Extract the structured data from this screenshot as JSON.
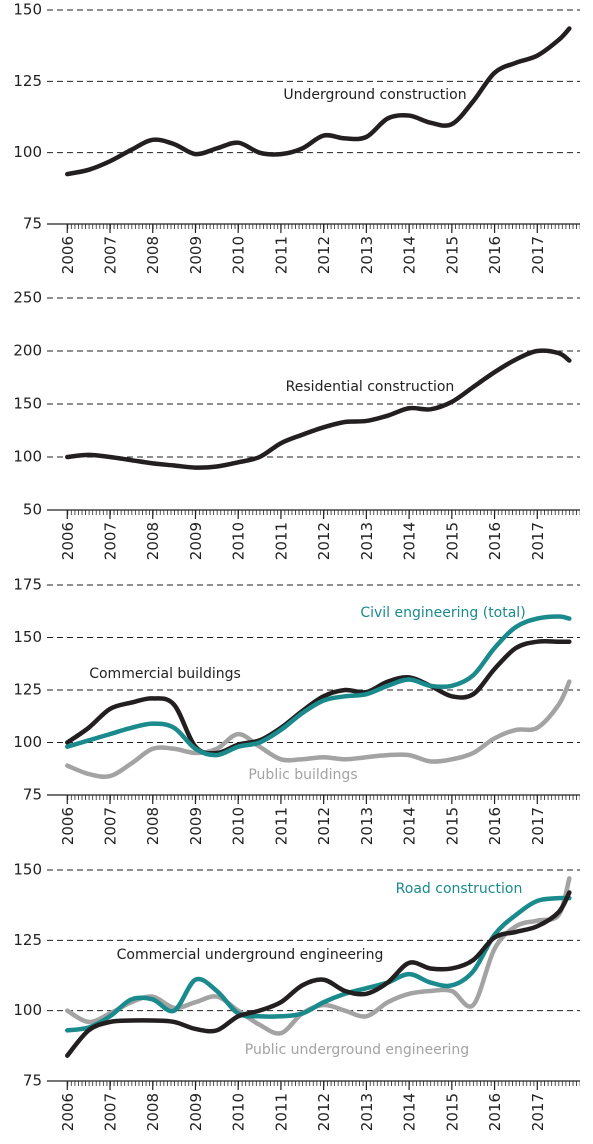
{
  "chart_data": [
    {
      "type": "line",
      "xlim": [
        2005.9,
        2018.0
      ],
      "xticks": [
        2006,
        2007,
        2008,
        2009,
        2010,
        2011,
        2012,
        2013,
        2014,
        2015,
        2016,
        2017
      ],
      "ylim": [
        75,
        150
      ],
      "yticks": [
        75,
        100,
        125,
        150
      ],
      "grid": true,
      "x": [
        2006,
        2006.5,
        2007,
        2007.5,
        2008,
        2008.5,
        2009,
        2009.5,
        2010,
        2010.5,
        2011,
        2011.5,
        2012,
        2012.5,
        2013,
        2013.5,
        2014,
        2014.5,
        2015,
        2015.5,
        2016,
        2016.5,
        2017,
        2017.5,
        2017.75
      ],
      "series": [
        {
          "name": "Underground construction",
          "color": "#231f20",
          "values": [
            92.5,
            94,
            97,
            101,
            104.5,
            103,
            99.5,
            101.5,
            103.5,
            100,
            99.5,
            101.5,
            106,
            105,
            105.5,
            112,
            113,
            110.5,
            110,
            118,
            128,
            131.5,
            134,
            139.5,
            143.5
          ]
        }
      ]
    },
    {
      "type": "line",
      "xlim": [
        2005.9,
        2018.0
      ],
      "xticks": [
        2006,
        2007,
        2008,
        2009,
        2010,
        2011,
        2012,
        2013,
        2014,
        2015,
        2016,
        2017
      ],
      "ylim": [
        50,
        250
      ],
      "yticks": [
        50,
        100,
        150,
        200,
        250
      ],
      "grid": true,
      "x": [
        2006,
        2006.5,
        2007,
        2007.5,
        2008,
        2008.5,
        2009,
        2009.5,
        2010,
        2010.5,
        2011,
        2011.5,
        2012,
        2012.5,
        2013,
        2013.5,
        2014,
        2014.5,
        2015,
        2015.5,
        2016,
        2016.5,
        2017,
        2017.5,
        2017.75
      ],
      "series": [
        {
          "name": "Residential construction",
          "color": "#231f20",
          "values": [
            100,
            102,
            100,
            97,
            94,
            92,
            90,
            91,
            95,
            100,
            113,
            121,
            128,
            133,
            134,
            139,
            146,
            145,
            152,
            166,
            180,
            192,
            200,
            198,
            191
          ]
        }
      ]
    },
    {
      "type": "line",
      "xlim": [
        2005.9,
        2018.0
      ],
      "xticks": [
        2006,
        2007,
        2008,
        2009,
        2010,
        2011,
        2012,
        2013,
        2014,
        2015,
        2016,
        2017
      ],
      "ylim": [
        75,
        175
      ],
      "yticks": [
        75,
        100,
        125,
        150,
        175
      ],
      "grid": true,
      "x": [
        2006,
        2006.5,
        2007,
        2007.5,
        2008,
        2008.5,
        2009,
        2009.5,
        2010,
        2010.5,
        2011,
        2011.5,
        2012,
        2012.5,
        2013,
        2013.5,
        2014,
        2014.5,
        2015,
        2015.5,
        2016,
        2016.5,
        2017,
        2017.5,
        2017.75
      ],
      "series": [
        {
          "name": "Public buildings",
          "color": "#a3a3a3",
          "values": [
            89,
            85,
            84,
            90,
            97,
            97,
            95,
            97,
            104,
            98,
            92,
            92,
            93,
            92,
            93,
            94,
            94,
            91,
            92,
            95,
            102,
            106,
            107,
            118,
            129
          ]
        },
        {
          "name": "Commercial buildings",
          "color": "#231f20",
          "values": [
            100,
            107,
            116,
            119,
            121,
            118,
            98,
            95,
            99,
            101,
            107,
            115,
            122,
            125,
            124,
            129,
            131,
            127,
            122,
            123,
            135,
            145,
            148,
            148,
            148
          ]
        },
        {
          "name": "Civil engineering (total)",
          "color": "#1a8a8c",
          "values": [
            98,
            101,
            104,
            107,
            109,
            107,
            97,
            94,
            98,
            100,
            106,
            114,
            120,
            122,
            123,
            127,
            130,
            127,
            127,
            132,
            145,
            155,
            159,
            160,
            159
          ]
        }
      ]
    },
    {
      "type": "line",
      "xlim": [
        2005.9,
        2018.0
      ],
      "xticks": [
        2006,
        2007,
        2008,
        2009,
        2010,
        2011,
        2012,
        2013,
        2014,
        2015,
        2016,
        2017
      ],
      "ylim": [
        75,
        150
      ],
      "yticks": [
        75,
        100,
        125,
        150
      ],
      "grid": true,
      "x": [
        2006,
        2006.5,
        2007,
        2007.5,
        2008,
        2008.5,
        2009,
        2009.5,
        2010,
        2010.5,
        2011,
        2011.5,
        2012,
        2012.5,
        2013,
        2013.5,
        2014,
        2014.5,
        2015,
        2015.5,
        2016,
        2016.5,
        2017,
        2017.5,
        2017.75
      ],
      "series": [
        {
          "name": "Public underground engineering",
          "color": "#a3a3a3",
          "values": [
            100,
            96,
            99,
            103,
            105,
            101,
            103,
            105,
            100,
            95,
            92,
            99,
            102,
            100,
            98,
            103,
            106,
            107,
            107,
            102,
            122,
            130,
            132,
            134,
            147
          ]
        },
        {
          "name": "Road construction",
          "color": "#1a8a8c",
          "values": [
            93,
            94,
            98,
            104,
            104,
            100,
            111,
            107,
            99,
            98,
            98,
            99,
            103,
            106,
            108,
            110,
            113,
            110,
            109,
            114,
            127,
            134,
            139,
            140,
            140
          ]
        },
        {
          "name": "Commercial underground engineering",
          "color": "#231f20",
          "values": [
            84,
            93,
            96,
            96.5,
            96.5,
            96,
            93.5,
            93,
            98,
            100,
            103,
            109,
            111,
            107,
            106,
            110,
            117,
            115,
            115,
            118,
            126,
            128,
            130,
            135,
            142
          ]
        }
      ]
    }
  ]
}
